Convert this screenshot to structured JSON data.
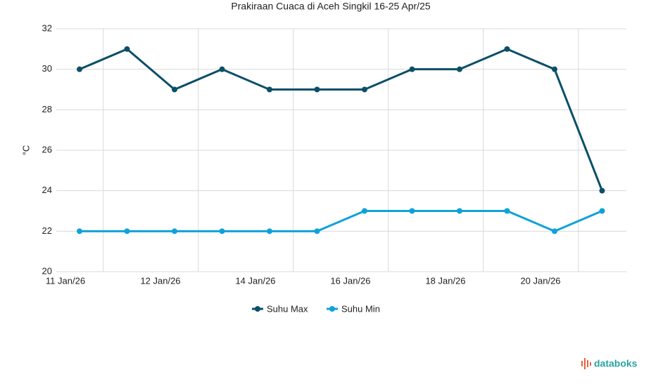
{
  "chart_data": {
    "type": "line",
    "title": "Prakiraan Cuaca di Aceh Singkil 16-25 Apr/25",
    "y_label": "°C",
    "categories": [
      "11 Jan/26",
      null,
      "12 Jan/26",
      null,
      "14 Jan/26",
      null,
      "16 Jan/26",
      null,
      "18 Jan/26",
      null,
      "20 Jan/26",
      null
    ],
    "series": [
      {
        "name": "Suhu Max",
        "color": "#0b4f68",
        "values": [
          30,
          31,
          29,
          30,
          29,
          29,
          29,
          30,
          30,
          31,
          30,
          24
        ]
      },
      {
        "name": "Suhu Min",
        "color": "#0ea2d9",
        "values": [
          22,
          22,
          22,
          22,
          22,
          22,
          23,
          23,
          23,
          23,
          22,
          23
        ]
      }
    ],
    "ylim": [
      20,
      32
    ],
    "yticks": [
      20,
      22,
      24,
      26,
      28,
      30,
      32
    ],
    "grid": true,
    "legend": "bottom",
    "brand": "databoks"
  }
}
